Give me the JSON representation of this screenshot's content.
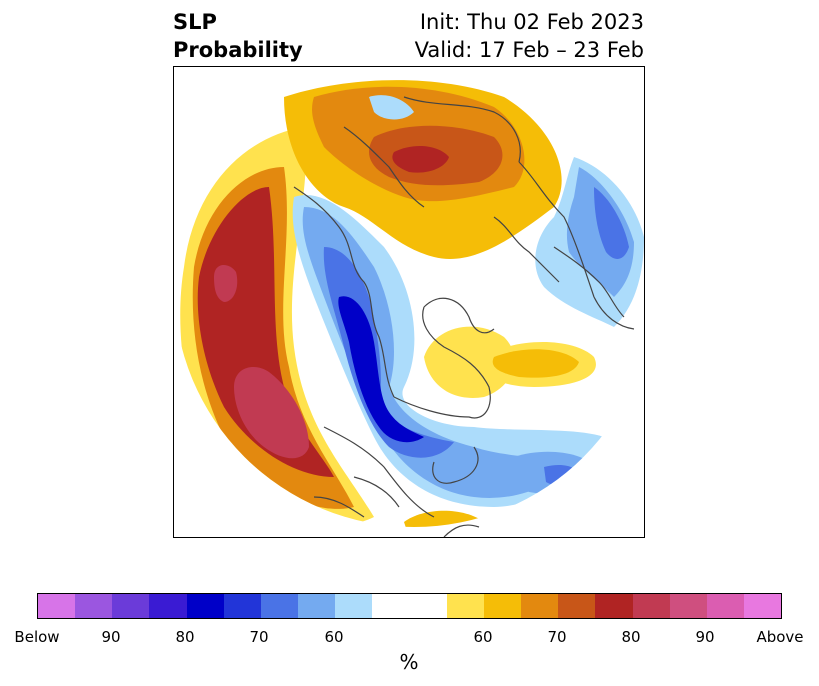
{
  "title": {
    "left_line1": "SLP",
    "left_line2": "Probability",
    "right_line1": "Init: Thu 02 Feb 2023",
    "right_line2": "Valid: 17 Feb – 23 Feb"
  },
  "colorbar": {
    "label": "%",
    "colors": [
      "#d774e8",
      "#9b56e0",
      "#6b3bd9",
      "#3a1bd3",
      "#0000c8",
      "#2235d8",
      "#4a73e6",
      "#74aaf0",
      "#acdcfb",
      "#ffffff",
      "#ffffff",
      "#ffe24e",
      "#f5bd07",
      "#e3890f",
      "#c85618",
      "#b02423",
      "#c13a52",
      "#cf4f7f",
      "#db5db1",
      "#e878e0"
    ],
    "ticks": [
      "Below",
      "90",
      "80",
      "70",
      "60",
      "60",
      "70",
      "80",
      "90",
      "Above"
    ]
  }
}
